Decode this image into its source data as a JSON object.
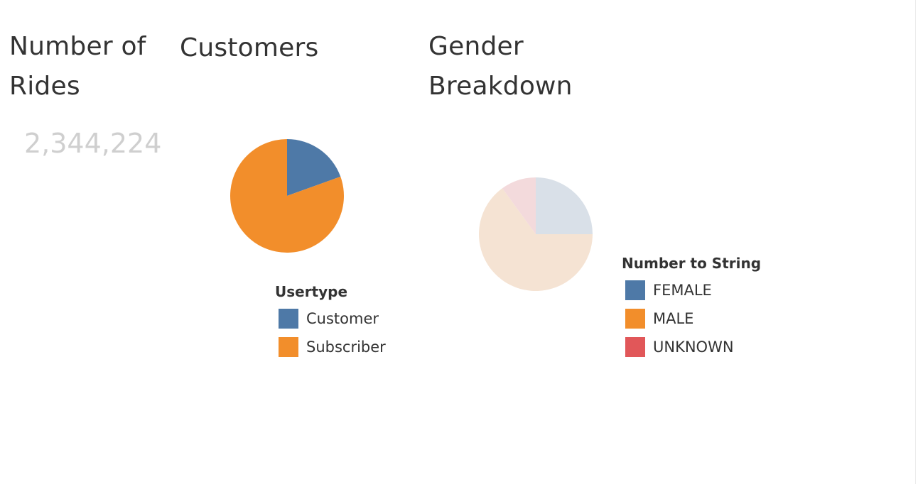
{
  "rides": {
    "title": "Number of\nRides",
    "value": "2,344,224"
  },
  "customers": {
    "title": "Customers"
  },
  "gender": {
    "title": "Gender\nBreakdown"
  },
  "chart_data": [
    {
      "type": "pie",
      "title": "Customers",
      "legend_title": "Usertype",
      "legend_position": "bottom",
      "slices": [
        {
          "label": "Customer",
          "value": 0.195,
          "color": "#4e79a7"
        },
        {
          "label": "Subscriber",
          "value": 0.805,
          "color": "#f28e2b"
        }
      ]
    },
    {
      "type": "pie",
      "title": "Gender Breakdown",
      "legend_title": "Number to String",
      "legend_position": "right",
      "faded": true,
      "slices": [
        {
          "label": "FEMALE",
          "value": 0.25,
          "color": "#4e79a7",
          "faded_color": "#d9e0e8"
        },
        {
          "label": "MALE",
          "value": 0.65,
          "color": "#f28e2b",
          "faded_color": "#f5e3d3"
        },
        {
          "label": "UNKNOWN",
          "value": 0.1,
          "color": "#e15759",
          "faded_color": "#f3dadc"
        }
      ]
    }
  ]
}
